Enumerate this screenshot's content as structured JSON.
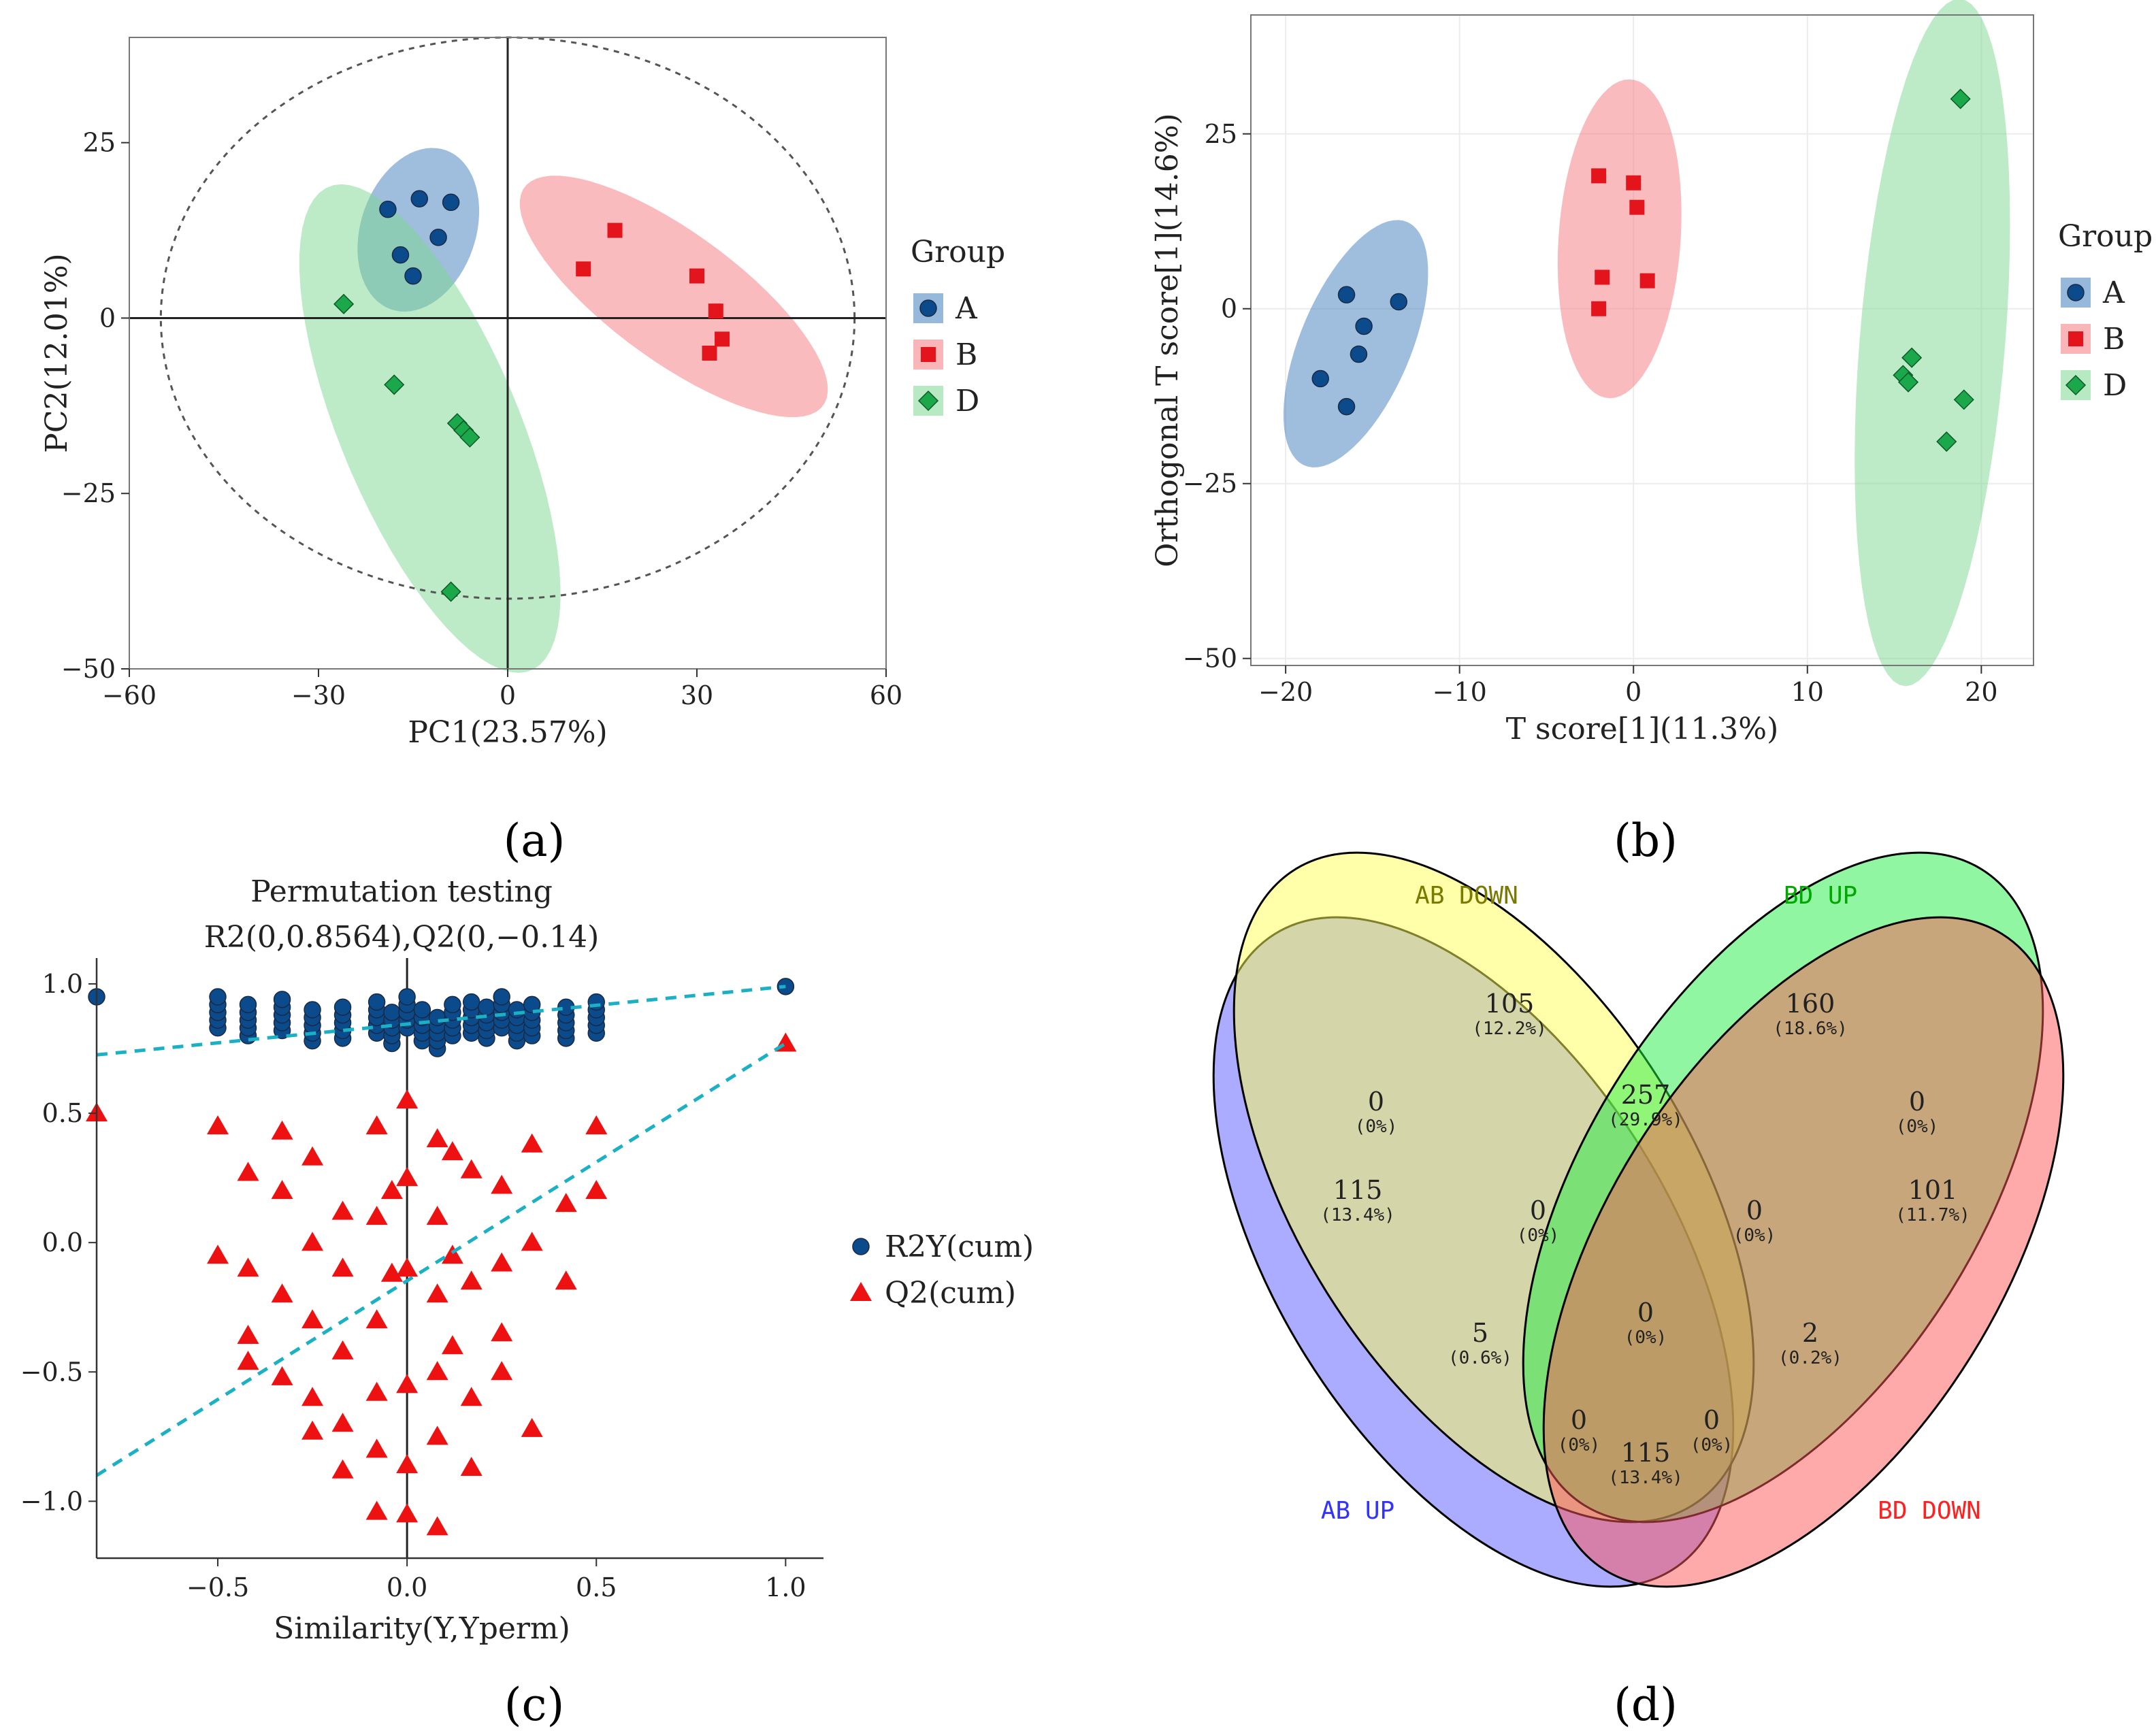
{
  "figure": {
    "panel_labels": [
      "(a)",
      "(b)",
      "(c)",
      "(d)"
    ]
  },
  "chart_data": [
    {
      "panel": "a",
      "type": "scatter",
      "xlabel": "PC1(23.57%)",
      "ylabel": "PC2(12.01%)",
      "xlim": [
        -60,
        60
      ],
      "ylim": [
        -50,
        40
      ],
      "xticks": [
        -60,
        -30,
        0,
        30,
        60
      ],
      "yticks": [
        -50,
        -25,
        0,
        25
      ],
      "xtick_labels": [
        "−60",
        "−30",
        "0",
        "30",
        "60"
      ],
      "ytick_labels": [
        "−50",
        "−25",
        "0",
        "25"
      ],
      "legend_title": "Group",
      "series": [
        {
          "name": "A",
          "color": "#0b4a8b",
          "fill": "#3f7ebb",
          "marker": "circle",
          "points": [
            [
              -19,
              15.5
            ],
            [
              -14,
              17
            ],
            [
              -9,
              16.5
            ],
            [
              -11,
              11.5
            ],
            [
              -17,
              9
            ],
            [
              -15,
              6
            ]
          ]
        },
        {
          "name": "B",
          "color": "#e3141b",
          "fill": "#f4787c",
          "marker": "square",
          "points": [
            [
              17,
              12.5
            ],
            [
              12,
              7
            ],
            [
              30,
              6
            ],
            [
              33,
              1
            ],
            [
              34,
              -3
            ],
            [
              32,
              -5
            ]
          ]
        },
        {
          "name": "D",
          "color": "#1aa84a",
          "fill": "#7bd88f",
          "marker": "diamond",
          "points": [
            [
              -26,
              2
            ],
            [
              -18,
              -9.5
            ],
            [
              -8,
              -15
            ],
            [
              -7,
              -16
            ],
            [
              -6,
              -17
            ],
            [
              -9,
              -39
            ]
          ]
        }
      ]
    },
    {
      "panel": "b",
      "type": "scatter",
      "xlabel": "T score[1](11.3%)",
      "ylabel": "Orthogonal T score[1](14.6%)",
      "xlim": [
        -22,
        23
      ],
      "ylim": [
        -51,
        42
      ],
      "xticks": [
        -20,
        -10,
        0,
        10,
        20
      ],
      "yticks": [
        -50,
        -25,
        0,
        25
      ],
      "xtick_labels": [
        "−20",
        "−10",
        "0",
        "10",
        "20"
      ],
      "ytick_labels": [
        "−50",
        "−25",
        "0",
        "25"
      ],
      "legend_title": "Group",
      "series": [
        {
          "name": "A",
          "color": "#0b4a8b",
          "fill": "#3f7ebb",
          "marker": "circle",
          "points": [
            [
              -18,
              -10
            ],
            [
              -16.5,
              2
            ],
            [
              -15.5,
              -2.5
            ],
            [
              -15.8,
              -6.5
            ],
            [
              -16.5,
              -14
            ],
            [
              -13.5,
              1
            ]
          ]
        },
        {
          "name": "B",
          "color": "#e3141b",
          "fill": "#f4787c",
          "marker": "square",
          "points": [
            [
              -2,
              19
            ],
            [
              0,
              18
            ],
            [
              0.2,
              14.5
            ],
            [
              -1.8,
              4.5
            ],
            [
              0.8,
              4
            ],
            [
              -2,
              0
            ]
          ]
        },
        {
          "name": "D",
          "color": "#1aa84a",
          "fill": "#7bd88f",
          "marker": "diamond",
          "points": [
            [
              18.8,
              30
            ],
            [
              16,
              -7
            ],
            [
              15.5,
              -9.5
            ],
            [
              15.8,
              -10.5
            ],
            [
              19,
              -13
            ],
            [
              18,
              -19
            ]
          ]
        }
      ]
    },
    {
      "panel": "c",
      "type": "scatter",
      "title": "Permutation testing",
      "subtitle": "R2(0,0.8564),Q2(0,−0.14)",
      "xlabel": "Similarity(Y,Yperm)",
      "ylabel": "",
      "xlim": [
        -0.82,
        1.1
      ],
      "ylim": [
        -1.22,
        1.1
      ],
      "xticks": [
        -0.5,
        0.0,
        0.5,
        1.0
      ],
      "yticks": [
        -1.0,
        -0.5,
        0.0,
        0.5,
        1.0
      ],
      "xtick_labels": [
        "−0.5",
        "0.0",
        "0.5",
        "1.0"
      ],
      "ytick_labels": [
        "−1.0",
        "−0.5",
        "0.0",
        "0.5",
        "1.0"
      ],
      "legend": [
        "R2Y(cum)",
        "Q2(cum)"
      ],
      "regression_lines": {
        "R2Y": {
          "intercept": 0.8564,
          "slope": 0.135
        },
        "Q2": {
          "intercept": -0.14,
          "slope": 0.9
        }
      },
      "R2Y_points": {
        "x": [
          -0.82,
          -0.5,
          -0.42,
          -0.33,
          -0.25,
          -0.17,
          -0.08,
          -0.04,
          0,
          0.04,
          0.08,
          0.12,
          0.17,
          0.21,
          0.25,
          0.29,
          0.33,
          0.42,
          0.5,
          1.0
        ],
        "y": [
          0.95,
          0.88,
          0.85,
          0.87,
          0.83,
          0.84,
          0.86,
          0.82,
          0.88,
          0.83,
          0.8,
          0.85,
          0.86,
          0.84,
          0.88,
          0.83,
          0.85,
          0.84,
          0.86,
          0.99
        ]
      },
      "Q2_points": {
        "x": [
          -0.82,
          -0.5,
          -0.5,
          -0.42,
          -0.42,
          -0.42,
          -0.42,
          -0.33,
          -0.33,
          -0.33,
          -0.33,
          -0.25,
          -0.25,
          -0.25,
          -0.25,
          -0.25,
          -0.17,
          -0.17,
          -0.17,
          -0.17,
          -0.17,
          -0.08,
          -0.08,
          -0.08,
          -0.08,
          -0.08,
          -0.08,
          -0.04,
          -0.04,
          0,
          0,
          0,
          0,
          0,
          0,
          0.08,
          0.08,
          0.08,
          0.08,
          0.08,
          0.08,
          0.12,
          0.12,
          0.12,
          0.17,
          0.17,
          0.17,
          0.17,
          0.25,
          0.25,
          0.25,
          0.25,
          0.33,
          0.33,
          0.33,
          0.42,
          0.42,
          0.5,
          0.5,
          1.0
        ],
        "y": [
          0.5,
          0.45,
          -0.05,
          0.27,
          -0.1,
          -0.36,
          -0.46,
          0.43,
          0.2,
          -0.2,
          -0.52,
          0.33,
          0.0,
          -0.3,
          -0.6,
          -0.73,
          0.12,
          -0.1,
          -0.42,
          -0.7,
          -0.88,
          0.45,
          0.1,
          -0.3,
          -0.58,
          -0.8,
          -1.04,
          0.2,
          -0.12,
          0.55,
          0.25,
          -0.1,
          -0.55,
          -0.86,
          -1.05,
          0.4,
          0.1,
          -0.2,
          -0.5,
          -0.75,
          -1.1,
          0.35,
          -0.05,
          -0.4,
          0.28,
          -0.15,
          -0.6,
          -0.87,
          0.22,
          -0.08,
          -0.35,
          -0.5,
          0.38,
          0.0,
          -0.72,
          0.15,
          -0.15,
          0.45,
          0.2,
          0.77
        ]
      }
    },
    {
      "panel": "d",
      "type": "venn",
      "sets": [
        "AB UP",
        "AB DOWN",
        "BD UP",
        "BD DOWN"
      ],
      "set_colors": [
        "#3333ff",
        "#7a7a00",
        "#00a800",
        "#ff2020"
      ],
      "regions": [
        {
          "label": "AB DOWN only",
          "count": "105",
          "pct": "(12.2%)"
        },
        {
          "label": "BD UP only",
          "count": "160",
          "pct": "(18.6%)"
        },
        {
          "label": "AB UP only",
          "count": "115",
          "pct": "(13.4%)"
        },
        {
          "label": "BD DOWN only",
          "count": "101",
          "pct": "(11.7%)"
        },
        {
          "label": "AB DOWN & BD UP",
          "count": "257",
          "pct": "(29.9%)"
        },
        {
          "label": "AB UP & AB DOWN",
          "count": "0",
          "pct": "(0%)"
        },
        {
          "label": "BD UP & BD DOWN",
          "count": "0",
          "pct": "(0%)"
        },
        {
          "label": "AB UP & AB DOWN & BD UP",
          "count": "0",
          "pct": "(0%)"
        },
        {
          "label": "AB DOWN & BD UP & BD DOWN",
          "count": "0",
          "pct": "(0%)"
        },
        {
          "label": "AB UP & BD UP",
          "count": "5",
          "pct": "(0.6%)"
        },
        {
          "label": "all four",
          "count": "0",
          "pct": "(0%)"
        },
        {
          "label": "AB DOWN & BD DOWN",
          "count": "2",
          "pct": "(0.2%)"
        },
        {
          "label": "AB UP & BD UP & BD DOWN",
          "count": "0",
          "pct": "(0%)"
        },
        {
          "label": "AB UP & AB DOWN & BD DOWN",
          "count": "0",
          "pct": "(0%)"
        },
        {
          "label": "AB UP & BD DOWN",
          "count": "115",
          "pct": "(13.4%)"
        }
      ]
    }
  ]
}
